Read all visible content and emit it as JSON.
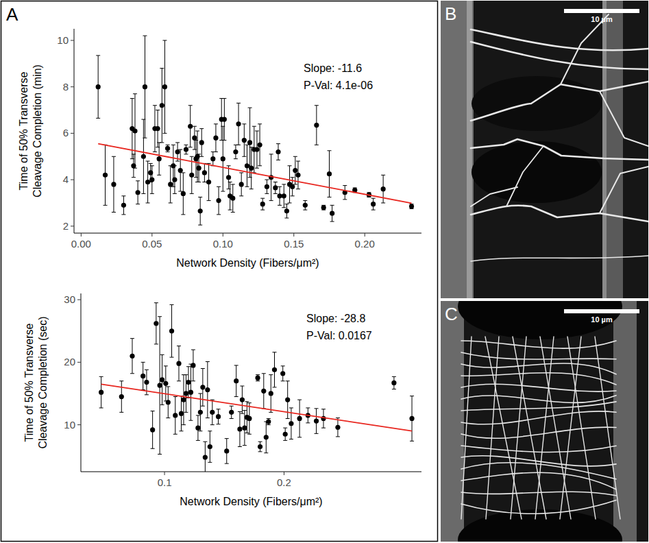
{
  "panel_label": "A",
  "chart_data": [
    {
      "type": "scatter",
      "x_label": "Network Density (Fibers/μm²)",
      "y_label": "Time of 50% Transverse Cleavage Completion (min)",
      "annotations": [
        "Slope: -11.6",
        "P-Val: 4.1e-06"
      ],
      "xlim": [
        -0.005,
        0.24
      ],
      "xticks": [
        {
          "value": 0,
          "label": "0.00"
        },
        {
          "value": 0.05,
          "label": "0.05"
        },
        {
          "value": 0.1,
          "label": "0.10"
        },
        {
          "value": 0.15,
          "label": "0.15"
        },
        {
          "value": 0.2,
          "label": "0.20"
        }
      ],
      "ylim": [
        1.7,
        10.5
      ],
      "yticks": [
        2,
        4,
        6,
        8,
        10
      ],
      "grid": false,
      "series": [
        {
          "type": "scatter",
          "color": "#000000",
          "marker": "circle",
          "x": [
            0.012,
            0.017,
            0.023,
            0.03,
            0.036,
            0.037,
            0.038,
            0.04,
            0.044,
            0.045,
            0.047,
            0.049,
            0.05,
            0.052,
            0.054,
            0.055,
            0.057,
            0.059,
            0.061,
            0.063,
            0.065,
            0.066,
            0.068,
            0.07,
            0.072,
            0.074,
            0.077,
            0.078,
            0.08,
            0.081,
            0.082,
            0.083,
            0.084,
            0.085,
            0.087,
            0.09,
            0.093,
            0.095,
            0.097,
            0.099,
            0.1,
            0.101,
            0.104,
            0.105,
            0.107,
            0.109,
            0.111,
            0.113,
            0.115,
            0.117,
            0.119,
            0.12,
            0.122,
            0.124,
            0.126,
            0.128,
            0.131,
            0.134,
            0.137,
            0.139,
            0.14,
            0.143,
            0.145,
            0.147,
            0.149,
            0.151,
            0.153,
            0.158,
            0.166,
            0.171,
            0.175,
            0.177,
            0.186,
            0.193,
            0.203,
            0.206,
            0.213,
            0.233
          ],
          "values": [
            8.0,
            4.2,
            3.8,
            2.9,
            6.2,
            4.6,
            6.1,
            3.45,
            5.0,
            8.0,
            3.9,
            4.3,
            4.0,
            6.2,
            6.2,
            4.9,
            7.2,
            8.0,
            5.35,
            3.8,
            4.6,
            4.0,
            5.2,
            4.4,
            3.4,
            5.3,
            6.3,
            4.2,
            5.8,
            4.9,
            5.0,
            4.5,
            2.65,
            5.6,
            4.3,
            3.9,
            4.9,
            5.8,
            3.1,
            6.6,
            4.9,
            6.6,
            4.1,
            3.3,
            3.2,
            5.2,
            6.4,
            3.8,
            5.7,
            4.6,
            5.6,
            4.5,
            5.3,
            5.3,
            5.5,
            2.95,
            3.7,
            4.1,
            3.65,
            5.2,
            3.3,
            3.3,
            2.65,
            3.8,
            3.7,
            4.4,
            4.2,
            2.9,
            6.35,
            2.8,
            4.25,
            2.55,
            3.45,
            3.55,
            3.35,
            2.95,
            3.6,
            2.85
          ],
          "errors": [
            1.35,
            1.3,
            1.2,
            0.4,
            1.3,
            0.5,
            1.6,
            0.5,
            1.6,
            2.2,
            0.9,
            0.4,
            0.6,
            1.0,
            0.8,
            0.7,
            1.6,
            2.0,
            0.15,
            0.8,
            0.9,
            0.6,
            0.4,
            0.9,
            0.9,
            0.2,
            0.9,
            0.8,
            0.5,
            0.8,
            1.1,
            0.6,
            0.6,
            0.6,
            0.4,
            0.8,
            0.3,
            0.6,
            0.6,
            0.9,
            1.4,
            0.9,
            0.5,
            0.6,
            0.6,
            0.3,
            0.9,
            0.5,
            0.7,
            0.9,
            1.5,
            0.9,
            1.0,
            0.8,
            0.9,
            0.25,
            0.3,
            1.0,
            0.25,
            0.35,
            0.4,
            0.5,
            0.3,
            0.8,
            0.4,
            0.6,
            0.6,
            0.2,
            0.85,
            0.1,
            1.0,
            0.35,
            0.3,
            0.1,
            0.1,
            0.25,
            0.6,
            0.1
          ]
        },
        {
          "type": "line",
          "color": "#e8261f",
          "line_style": "solid",
          "x": [
            0.012,
            0.233
          ],
          "values": [
            5.55,
            2.99
          ]
        }
      ]
    },
    {
      "type": "scatter",
      "x_label": "Network Density (Fibers/μm²)",
      "y_label": "Time of 50% Transverse Cleavage Completion (sec)",
      "annotations": [
        "Slope: -28.8",
        "P-Val: 0.0167"
      ],
      "xlim": [
        0.03,
        0.315
      ],
      "xticks": [
        0.1,
        0.2
      ],
      "ylim": [
        2.5,
        31
      ],
      "yticks": [
        10,
        20,
        30
      ],
      "grid": false,
      "series": [
        {
          "type": "scatter",
          "color": "#000000",
          "marker": "circle",
          "x": [
            0.047,
            0.064,
            0.073,
            0.082,
            0.085,
            0.09,
            0.093,
            0.096,
            0.098,
            0.101,
            0.103,
            0.106,
            0.109,
            0.112,
            0.114,
            0.116,
            0.118,
            0.12,
            0.122,
            0.124,
            0.128,
            0.13,
            0.132,
            0.134,
            0.136,
            0.138,
            0.14,
            0.145,
            0.152,
            0.156,
            0.16,
            0.163,
            0.165,
            0.167,
            0.169,
            0.171,
            0.178,
            0.18,
            0.183,
            0.185,
            0.187,
            0.189,
            0.192,
            0.199,
            0.201,
            0.203,
            0.206,
            0.213,
            0.22,
            0.227,
            0.233,
            0.245,
            0.292,
            0.307
          ],
          "values": [
            15.2,
            14.5,
            21.0,
            17.8,
            16.8,
            9.2,
            26.2,
            16.3,
            17.2,
            16.6,
            13.6,
            25.0,
            11.5,
            19.8,
            11.8,
            14.0,
            15.0,
            16.8,
            15.2,
            19.5,
            9.5,
            12.0,
            16.0,
            4.8,
            15.6,
            6.5,
            12.0,
            11.3,
            5.8,
            12.0,
            17.0,
            9.3,
            14.0,
            9.5,
            11.2,
            11.0,
            17.5,
            6.5,
            15.4,
            8.0,
            10.5,
            15.0,
            18.8,
            18.2,
            8.5,
            14.0,
            10.2,
            11.0,
            11.5,
            10.6,
            11.0,
            9.6,
            16.7,
            11.0
          ],
          "errors": [
            2.5,
            2.5,
            2.8,
            2.2,
            2.0,
            3.0,
            3.3,
            11.0,
            4.0,
            2.8,
            2.5,
            4.2,
            3.0,
            2.8,
            2.8,
            4.0,
            3.0,
            2.5,
            4.5,
            2.5,
            2.0,
            3.0,
            3.0,
            2.5,
            4.5,
            2.5,
            2.0,
            1.2,
            2.0,
            1.0,
            2.5,
            2.8,
            2.2,
            2.8,
            2.5,
            2.5,
            0.5,
            0.8,
            2.8,
            2.5,
            0.5,
            3.0,
            2.8,
            1.2,
            1.0,
            3.0,
            2.5,
            3.0,
            1.2,
            2.0,
            1.5,
            1.5,
            1.0,
            3.6
          ]
        },
        {
          "type": "line",
          "color": "#e8261f",
          "line_style": "solid",
          "x": [
            0.047,
            0.307
          ],
          "values": [
            16.5,
            9.0
          ]
        }
      ]
    }
  ],
  "images": [
    {
      "label": "B",
      "scale_bar": "10 µm"
    },
    {
      "label": "C",
      "scale_bar": "10 µm"
    }
  ]
}
